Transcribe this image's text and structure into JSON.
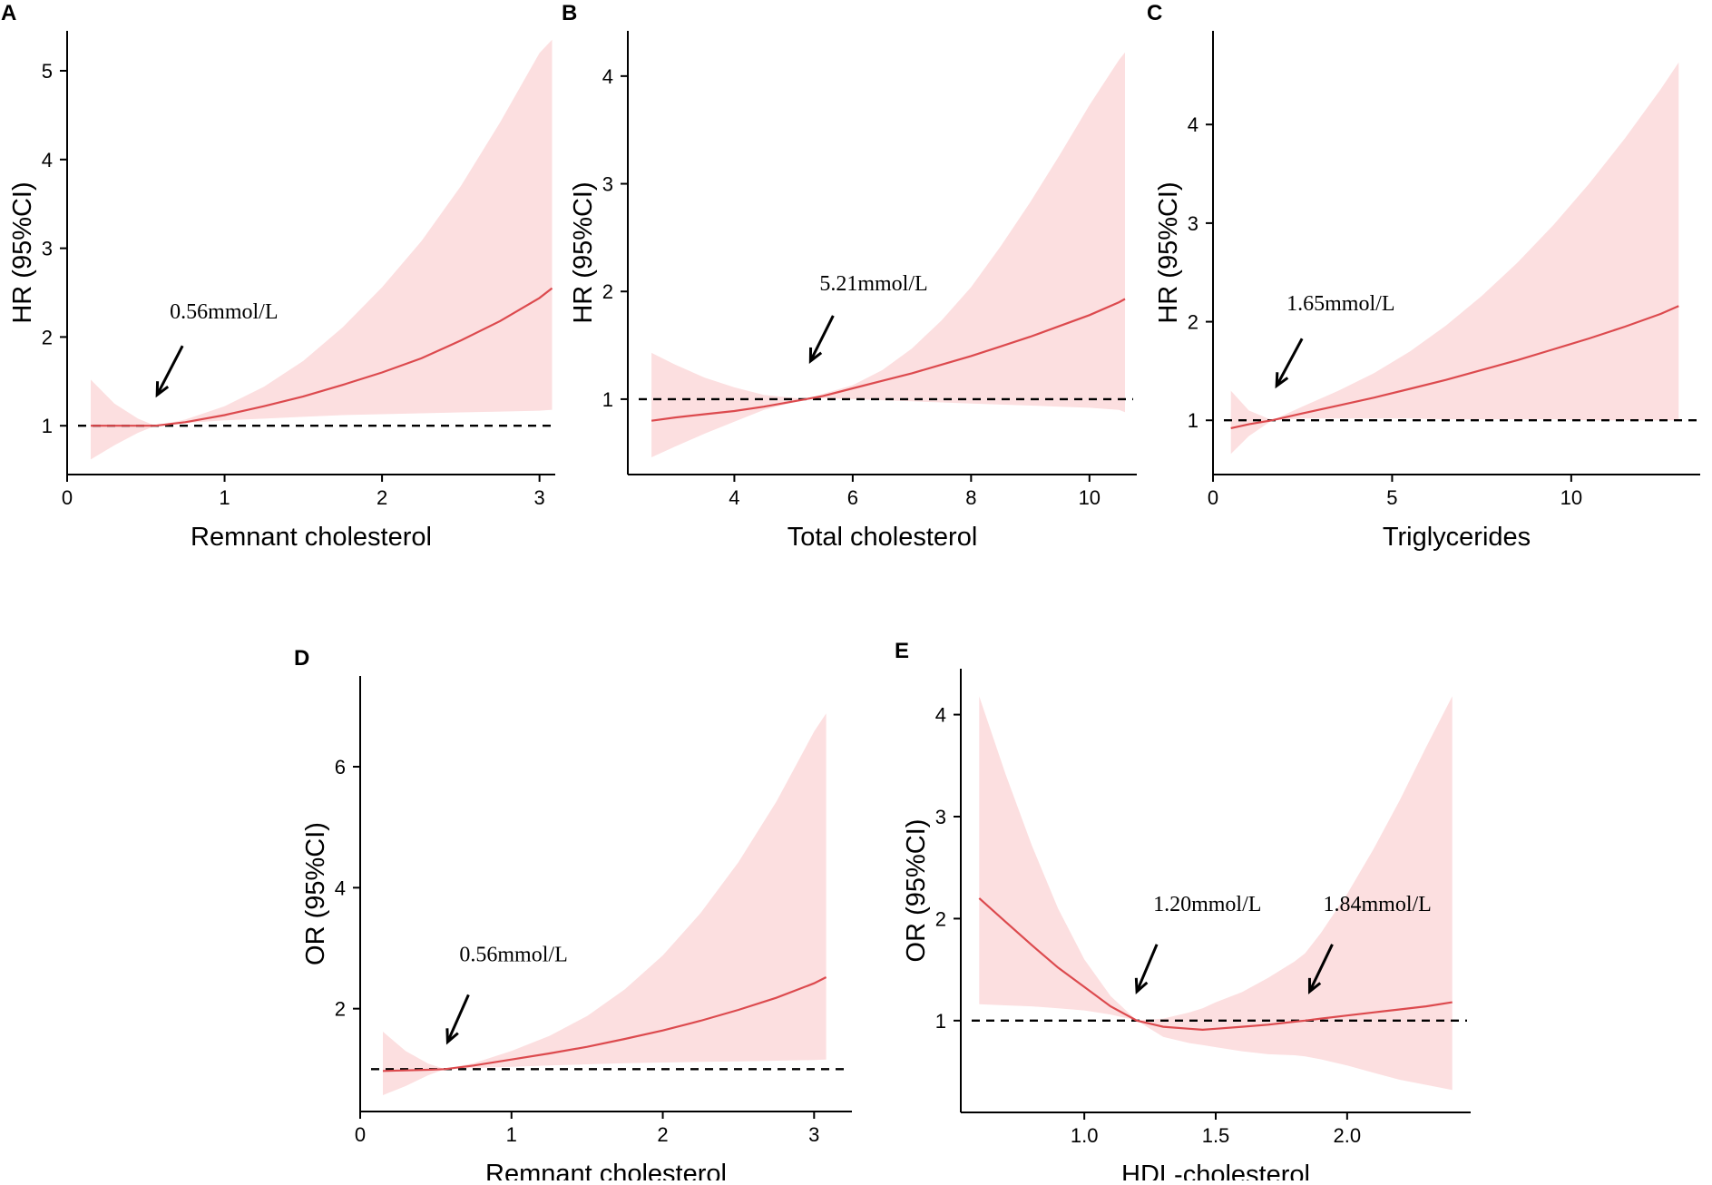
{
  "colors": {
    "line": "#dc4a4e",
    "band": "#fcdfe0",
    "axis": "#000000"
  },
  "chart_data": [
    {
      "panel": "A",
      "type": "line",
      "xlabel": "Remnant cholesterol",
      "ylabel": "HR (95%CI)",
      "xlim": [
        0,
        3.1
      ],
      "ylim": [
        0.45,
        5.45
      ],
      "xticks": [
        0,
        1,
        2,
        3
      ],
      "xtick_labels": [
        "0",
        "1",
        "2",
        "3"
      ],
      "yticks": [
        1,
        2,
        3,
        4,
        5
      ],
      "ytick_labels": [
        "1",
        "2",
        "3",
        "4",
        "5"
      ],
      "reference_y": 1,
      "x": [
        0.15,
        0.3,
        0.45,
        0.56,
        0.75,
        1.0,
        1.25,
        1.5,
        1.75,
        2.0,
        2.25,
        2.5,
        2.75,
        3.0,
        3.08
      ],
      "y": [
        1.0,
        1.0,
        1.0,
        1.0,
        1.04,
        1.12,
        1.22,
        1.33,
        1.46,
        1.6,
        1.76,
        1.96,
        2.18,
        2.44,
        2.55
      ],
      "lower": [
        0.62,
        0.78,
        0.92,
        1.0,
        1.03,
        1.06,
        1.08,
        1.1,
        1.12,
        1.13,
        1.14,
        1.15,
        1.16,
        1.17,
        1.18
      ],
      "upper": [
        1.52,
        1.25,
        1.08,
        1.0,
        1.07,
        1.22,
        1.44,
        1.73,
        2.11,
        2.56,
        3.08,
        3.7,
        4.42,
        5.2,
        5.35
      ],
      "annotations": [
        {
          "text": "0.56mmol/L",
          "x": 0.56
        }
      ]
    },
    {
      "panel": "B",
      "type": "line",
      "xlabel": "Total cholesterol",
      "ylabel": "HR (95%CI)",
      "xlim": [
        2.2,
        10.8
      ],
      "ylim": [
        0.3,
        4.42
      ],
      "xticks": [
        4,
        6,
        8,
        10
      ],
      "xtick_labels": [
        "4",
        "6",
        "8",
        "10"
      ],
      "yticks": [
        1,
        2,
        3,
        4
      ],
      "ytick_labels": [
        "1",
        "2",
        "3",
        "4"
      ],
      "reference_y": 1,
      "x": [
        2.6,
        3.0,
        3.5,
        4.0,
        4.5,
        5.21,
        5.5,
        6.0,
        6.5,
        7.0,
        7.5,
        8.0,
        8.5,
        9.0,
        9.5,
        10.0,
        10.5,
        10.6
      ],
      "y": [
        0.8,
        0.83,
        0.86,
        0.89,
        0.93,
        1.0,
        1.03,
        1.1,
        1.17,
        1.24,
        1.32,
        1.4,
        1.49,
        1.58,
        1.68,
        1.78,
        1.9,
        1.93
      ],
      "lower": [
        0.46,
        0.56,
        0.68,
        0.79,
        0.9,
        1.0,
        1.01,
        1.0,
        0.99,
        0.98,
        0.97,
        0.96,
        0.95,
        0.94,
        0.93,
        0.92,
        0.9,
        0.88
      ],
      "upper": [
        1.43,
        1.32,
        1.2,
        1.11,
        1.04,
        1.0,
        1.05,
        1.13,
        1.27,
        1.47,
        1.73,
        2.04,
        2.42,
        2.83,
        3.27,
        3.73,
        4.15,
        4.22
      ],
      "annotations": [
        {
          "text": "5.21mmol/L",
          "x": 5.21
        }
      ]
    },
    {
      "panel": "C",
      "type": "line",
      "xlabel": "Triglycerides",
      "ylabel": "HR (95%CI)",
      "xlim": [
        0,
        13.6
      ],
      "ylim": [
        0.45,
        4.95
      ],
      "xticks": [
        0,
        5,
        10
      ],
      "xtick_labels": [
        "0",
        "5",
        "10"
      ],
      "yticks": [
        1,
        2,
        3,
        4
      ],
      "ytick_labels": [
        "1",
        "2",
        "3",
        "4"
      ],
      "reference_y": 1,
      "x": [
        0.5,
        1.0,
        1.65,
        2.5,
        3.5,
        4.5,
        5.5,
        6.5,
        7.5,
        8.5,
        9.5,
        10.5,
        11.5,
        12.5,
        13.0
      ],
      "y": [
        0.92,
        0.96,
        1.0,
        1.07,
        1.15,
        1.23,
        1.32,
        1.41,
        1.51,
        1.61,
        1.72,
        1.83,
        1.95,
        2.08,
        2.16
      ],
      "lower": [
        0.66,
        0.84,
        1.0,
        1.02,
        1.02,
        1.02,
        1.02,
        1.01,
        1.01,
        1.01,
        1.01,
        1.0,
        1.0,
        1.0,
        1.0
      ],
      "upper": [
        1.3,
        1.1,
        1.0,
        1.14,
        1.3,
        1.48,
        1.7,
        1.96,
        2.26,
        2.6,
        2.98,
        3.4,
        3.86,
        4.36,
        4.63
      ],
      "annotations": [
        {
          "text": "1.65mmol/L",
          "x": 1.65
        }
      ]
    },
    {
      "panel": "D",
      "type": "line",
      "xlabel": "Remnant cholesterol",
      "ylabel": "OR (95%CI)",
      "xlim": [
        0,
        3.25
      ],
      "ylim": [
        0.3,
        7.5
      ],
      "xticks": [
        0,
        1,
        2,
        3
      ],
      "xtick_labels": [
        "0",
        "1",
        "2",
        "3"
      ],
      "yticks": [
        2,
        4,
        6
      ],
      "ytick_labels": [
        "2",
        "4",
        "6"
      ],
      "reference_y": 1,
      "x": [
        0.15,
        0.3,
        0.45,
        0.56,
        0.75,
        1.0,
        1.25,
        1.5,
        1.75,
        2.0,
        2.25,
        2.5,
        2.75,
        3.0,
        3.08
      ],
      "y": [
        0.97,
        0.98,
        0.99,
        1.0,
        1.06,
        1.16,
        1.26,
        1.37,
        1.5,
        1.64,
        1.8,
        1.98,
        2.18,
        2.42,
        2.52
      ],
      "lower": [
        0.57,
        0.72,
        0.9,
        1.0,
        1.02,
        1.04,
        1.06,
        1.08,
        1.1,
        1.11,
        1.12,
        1.13,
        1.14,
        1.15,
        1.16
      ],
      "upper": [
        1.62,
        1.3,
        1.09,
        1.0,
        1.1,
        1.3,
        1.55,
        1.88,
        2.32,
        2.88,
        3.58,
        4.42,
        5.42,
        6.58,
        6.88
      ],
      "annotations": [
        {
          "text": "0.56mmol/L",
          "x": 0.56
        }
      ]
    },
    {
      "panel": "E",
      "type": "line",
      "xlabel": "HDL-cholesterol",
      "ylabel": "OR (95%CI)",
      "xlim": [
        0.53,
        2.47
      ],
      "ylim": [
        0.1,
        4.45
      ],
      "xticks": [
        1.0,
        1.5,
        2.0
      ],
      "xtick_labels": [
        "1.0",
        "1.5",
        "2.0"
      ],
      "yticks": [
        1,
        2,
        3,
        4
      ],
      "ytick_labels": [
        "1",
        "2",
        "3",
        "4"
      ],
      "reference_y": 1,
      "x": [
        0.6,
        0.7,
        0.8,
        0.9,
        1.0,
        1.1,
        1.2,
        1.3,
        1.4,
        1.45,
        1.5,
        1.6,
        1.7,
        1.8,
        1.84,
        1.9,
        2.0,
        2.1,
        2.2,
        2.3,
        2.4
      ],
      "y": [
        2.2,
        1.97,
        1.74,
        1.52,
        1.33,
        1.14,
        1.0,
        0.94,
        0.92,
        0.91,
        0.92,
        0.94,
        0.96,
        0.99,
        1.0,
        1.02,
        1.05,
        1.08,
        1.11,
        1.14,
        1.18
      ],
      "lower": [
        1.16,
        1.15,
        1.14,
        1.12,
        1.1,
        1.06,
        1.0,
        0.84,
        0.78,
        0.76,
        0.74,
        0.7,
        0.67,
        0.66,
        0.65,
        0.62,
        0.56,
        0.49,
        0.42,
        0.37,
        0.32
      ],
      "upper": [
        4.18,
        3.42,
        2.72,
        2.1,
        1.6,
        1.24,
        1.0,
        1.02,
        1.08,
        1.12,
        1.18,
        1.28,
        1.42,
        1.58,
        1.66,
        1.86,
        2.24,
        2.68,
        3.16,
        3.68,
        4.18
      ],
      "annotations": [
        {
          "text": "1.20mmol/L",
          "x": 1.2
        },
        {
          "text": "1.84mmol/L",
          "x": 1.84
        }
      ]
    }
  ]
}
